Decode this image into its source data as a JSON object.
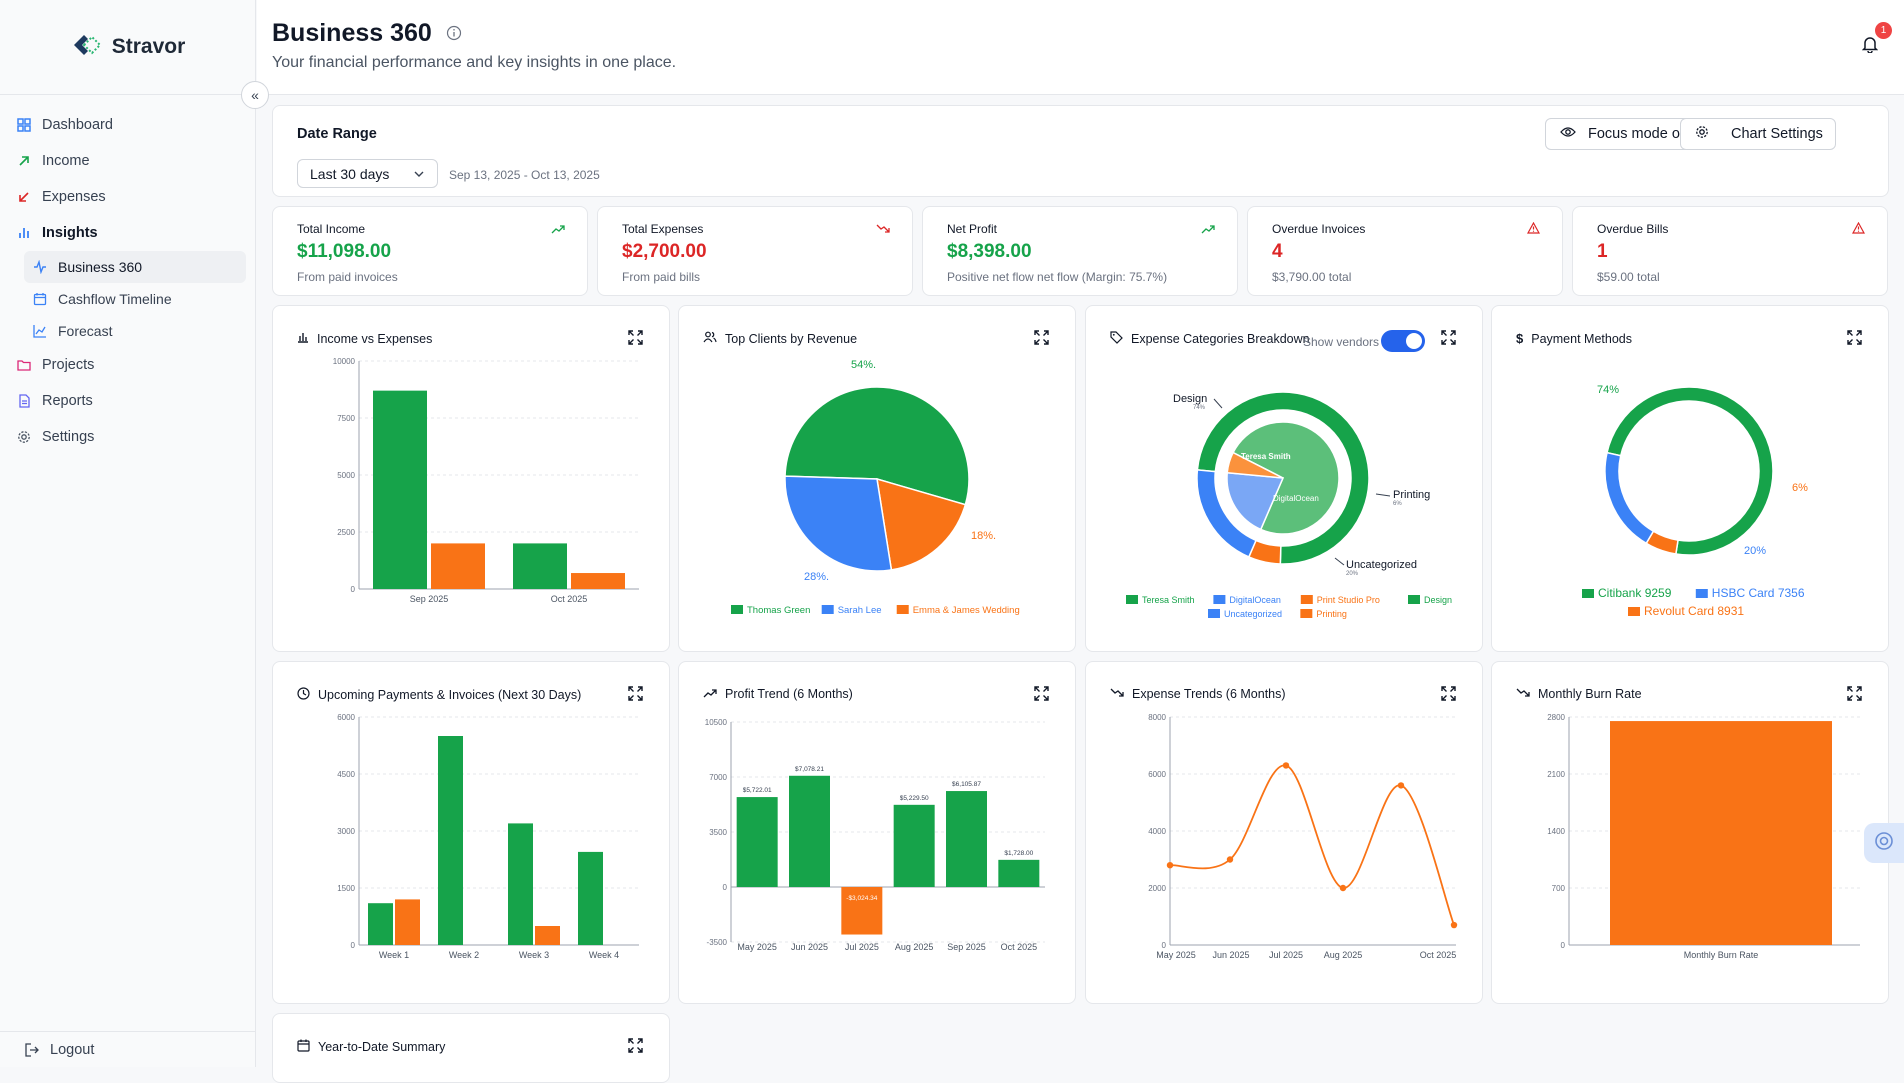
{
  "app": {
    "name": "Stravor"
  },
  "sidebar": {
    "items": [
      {
        "label": "Dashboard",
        "icon": "dashboard-icon"
      },
      {
        "label": "Income",
        "icon": "arrow-up-right-icon"
      },
      {
        "label": "Expenses",
        "icon": "arrow-down-left-icon"
      },
      {
        "label": "Insights",
        "icon": "bar-chart-icon"
      }
    ],
    "subitems": [
      {
        "label": "Business 360",
        "icon": "activity-icon",
        "active": true
      },
      {
        "label": "Cashflow Timeline",
        "icon": "calendar-icon"
      },
      {
        "label": "Forecast",
        "icon": "line-chart-icon"
      }
    ],
    "items2": [
      {
        "label": "Projects",
        "icon": "folder-icon"
      },
      {
        "label": "Reports",
        "icon": "file-report-icon"
      },
      {
        "label": "Settings",
        "icon": "gear-icon"
      }
    ],
    "logout": "Logout"
  },
  "header": {
    "title": "Business 360",
    "subtitle": "Your financial performance and key insights in one place.",
    "notification_count": "1"
  },
  "date_range": {
    "label": "Date Range",
    "selected": "Last 30 days",
    "dates": "Sep 13, 2025 - Oct 13, 2025",
    "focus_btn": "Focus mode off",
    "settings_btn": "Chart Settings"
  },
  "stats": [
    {
      "label": "Total Income",
      "value": "$11,098.00",
      "sub": "From paid invoices",
      "color": "#16a34a",
      "icon": "trend-up-icon"
    },
    {
      "label": "Total Expenses",
      "value": "$2,700.00",
      "sub": "From paid bills",
      "color": "#dc2626",
      "icon": "trend-down-icon"
    },
    {
      "label": "Net Profit",
      "value": "$8,398.00",
      "sub": "Positive net flow net flow (Margin: 75.7%)",
      "color": "#16a34a",
      "icon": "trend-up-icon"
    },
    {
      "label": "Overdue Invoices",
      "value": "4",
      "sub": "$3,790.00 total",
      "color": "#dc2626",
      "icon": "alert-triangle-icon"
    },
    {
      "label": "Overdue Bills",
      "value": "1",
      "sub": "$59.00 total",
      "color": "#dc2626",
      "icon": "alert-triangle-icon"
    }
  ],
  "cards": {
    "income_vs_expenses": "Income vs Expenses",
    "top_clients": "Top Clients by Revenue",
    "expense_categories": "Expense Categories Breakdown",
    "show_vendors": "Show vendors",
    "payment_methods": "Payment Methods",
    "upcoming": "Upcoming Payments & Invoices (Next 30 Days)",
    "profit_trend": "Profit Trend (6 Months)",
    "expense_trends": "Expense Trends (6 Months)",
    "burn_rate": "Monthly Burn Rate",
    "ytd": "Year-to-Date Summary"
  },
  "colors": {
    "green": "#16a34a",
    "orange": "#f97316",
    "blue": "#3b82f6",
    "lightgreen": "#5cbf7a"
  },
  "chart_data": [
    {
      "type": "bar",
      "id": "income_vs_expenses",
      "categories": [
        "Sep 2025",
        "Oct 2025"
      ],
      "series": [
        {
          "values": [
            8700,
            2000
          ],
          "color": "#16a34a"
        },
        {
          "values": [
            2000,
            700
          ],
          "color": "#f97316"
        }
      ],
      "ylim": [
        0,
        10000
      ],
      "yticks": [
        "0",
        "2500",
        "5000",
        "7500",
        "10000"
      ]
    },
    {
      "type": "pie",
      "id": "top_clients",
      "slices": [
        {
          "name": "Thomas Green",
          "value": 54,
          "label": "54%.",
          "color": "#16a34a"
        },
        {
          "name": "Emma & James Wedding",
          "value": 18,
          "label": "18%.",
          "color": "#f97316"
        },
        {
          "name": "Sarah Lee",
          "value": 28,
          "label": "28%.",
          "color": "#3b82f6"
        }
      ]
    },
    {
      "type": "pie",
      "id": "expense_categories",
      "outer": [
        {
          "name": "Design",
          "value": 74,
          "color": "#16a34a"
        },
        {
          "name": "Printing",
          "value": 6,
          "color": "#f97316"
        },
        {
          "name": "Uncategorized",
          "value": 20,
          "color": "#3b82f6"
        }
      ],
      "inner": [
        {
          "name": "Teresa Smith",
          "value": 74,
          "color": "#5cbf7a"
        },
        {
          "name": "DigitalOcean",
          "value": 20,
          "color": "#7aa7f5"
        },
        {
          "name": "Print Studio Pro",
          "value": 6,
          "color": "#fb923c"
        }
      ],
      "labels": [
        {
          "text": "Design",
          "pct": "74%"
        },
        {
          "text": "Printing",
          "pct": "6%"
        },
        {
          "text": "Uncategorized",
          "pct": "20%"
        }
      ],
      "legend": [
        "Teresa Smith",
        "DigitalOcean",
        "Print Studio Pro",
        "Design",
        "Uncategorized",
        "Printing"
      ]
    },
    {
      "type": "pie",
      "id": "payment_methods",
      "slices": [
        {
          "name": "Citibank 9259",
          "value": 74,
          "label": "74%",
          "color": "#16a34a"
        },
        {
          "name": "Revolut Card 8931",
          "value": 6,
          "label": "6%",
          "color": "#f97316"
        },
        {
          "name": "HSBC Card 7356",
          "value": 20,
          "label": "20%",
          "color": "#3b82f6"
        }
      ]
    },
    {
      "type": "bar",
      "id": "upcoming",
      "categories": [
        "Week 1",
        "Week 2",
        "Week 3",
        "Week 4"
      ],
      "series": [
        {
          "values": [
            1100,
            5500,
            3200,
            2450
          ],
          "color": "#16a34a"
        },
        {
          "values": [
            1200,
            0,
            500,
            0
          ],
          "color": "#f97316"
        }
      ],
      "ylim": [
        0,
        6000
      ],
      "yticks": [
        "0",
        "1500",
        "3000",
        "4500",
        "6000"
      ]
    },
    {
      "type": "bar",
      "id": "profit_trend",
      "categories": [
        "May 2025",
        "Jun 2025",
        "Jul 2025",
        "Aug 2025",
        "Sep 2025",
        "Oct 2025"
      ],
      "values": [
        5722.01,
        7078.21,
        -3024.34,
        5229.5,
        6105.87,
        1728
      ],
      "labels": [
        "$5,722.01",
        "$7,078.21",
        "-$3,024.34",
        "$5,229.50",
        "$6,105.87",
        "$1,728.00"
      ],
      "ylim": [
        -3500,
        10500
      ],
      "yticks": [
        "-3500",
        "0",
        "3500",
        "7000",
        "10500"
      ]
    },
    {
      "type": "line",
      "id": "expense_trends",
      "x": [
        "May 2025",
        "Jun 2025",
        "Jul 2025",
        "Aug 2025",
        "Sep 2025",
        "Oct 2025"
      ],
      "values": [
        2800,
        3000,
        6300,
        2000,
        5600,
        700
      ],
      "xticklabels": [
        "May 2025",
        "Jun 2025",
        "Jul 2025",
        "Aug 2025",
        "Oct 2025"
      ],
      "ylim": [
        0,
        8000
      ],
      "yticks": [
        "0",
        "2000",
        "4000",
        "6000",
        "8000"
      ]
    },
    {
      "type": "bar",
      "id": "burn_rate",
      "categories": [
        "Monthly Burn Rate"
      ],
      "values": [
        2750
      ],
      "ylim": [
        0,
        2800
      ],
      "yticks": [
        "0",
        "700",
        "1400",
        "2100",
        "2800"
      ]
    }
  ]
}
